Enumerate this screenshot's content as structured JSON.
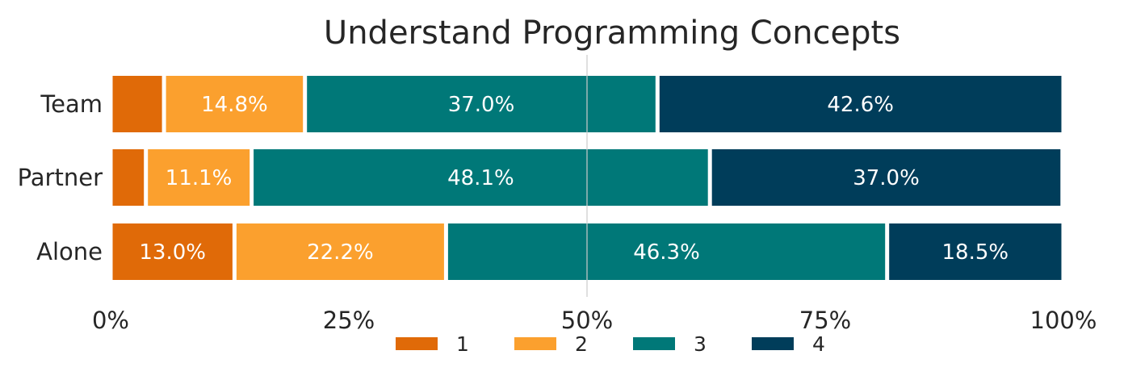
{
  "chart_data": {
    "type": "bar",
    "orientation": "horizontal",
    "stacked": true,
    "title": "Understand Programming Concepts",
    "xlabel": "",
    "ylabel": "",
    "categories": [
      "Team",
      "Partner",
      "Alone"
    ],
    "series": [
      {
        "name": "1",
        "color": "#E06A08",
        "values": [
          5.6,
          3.7,
          13.0
        ],
        "labels": [
          "",
          "",
          "13.0%"
        ]
      },
      {
        "name": "2",
        "color": "#FBA02E",
        "values": [
          14.8,
          11.1,
          22.2
        ],
        "labels": [
          "14.8%",
          "11.1%",
          "22.2%"
        ]
      },
      {
        "name": "3",
        "color": "#007878",
        "values": [
          37.0,
          48.1,
          46.3
        ],
        "labels": [
          "37.0%",
          "48.1%",
          "46.3%"
        ]
      },
      {
        "name": "4",
        "color": "#003D5A",
        "values": [
          42.6,
          37.0,
          18.5
        ],
        "labels": [
          "42.6%",
          "37.0%",
          "18.5%"
        ]
      }
    ],
    "xlim": [
      0,
      100
    ],
    "xticks": [
      0,
      25,
      50,
      75,
      100
    ],
    "xtick_labels": [
      "0%",
      "25%",
      "50%",
      "75%",
      "100%"
    ],
    "reference_line": 50,
    "grid": false,
    "legend_position": "bottom"
  }
}
